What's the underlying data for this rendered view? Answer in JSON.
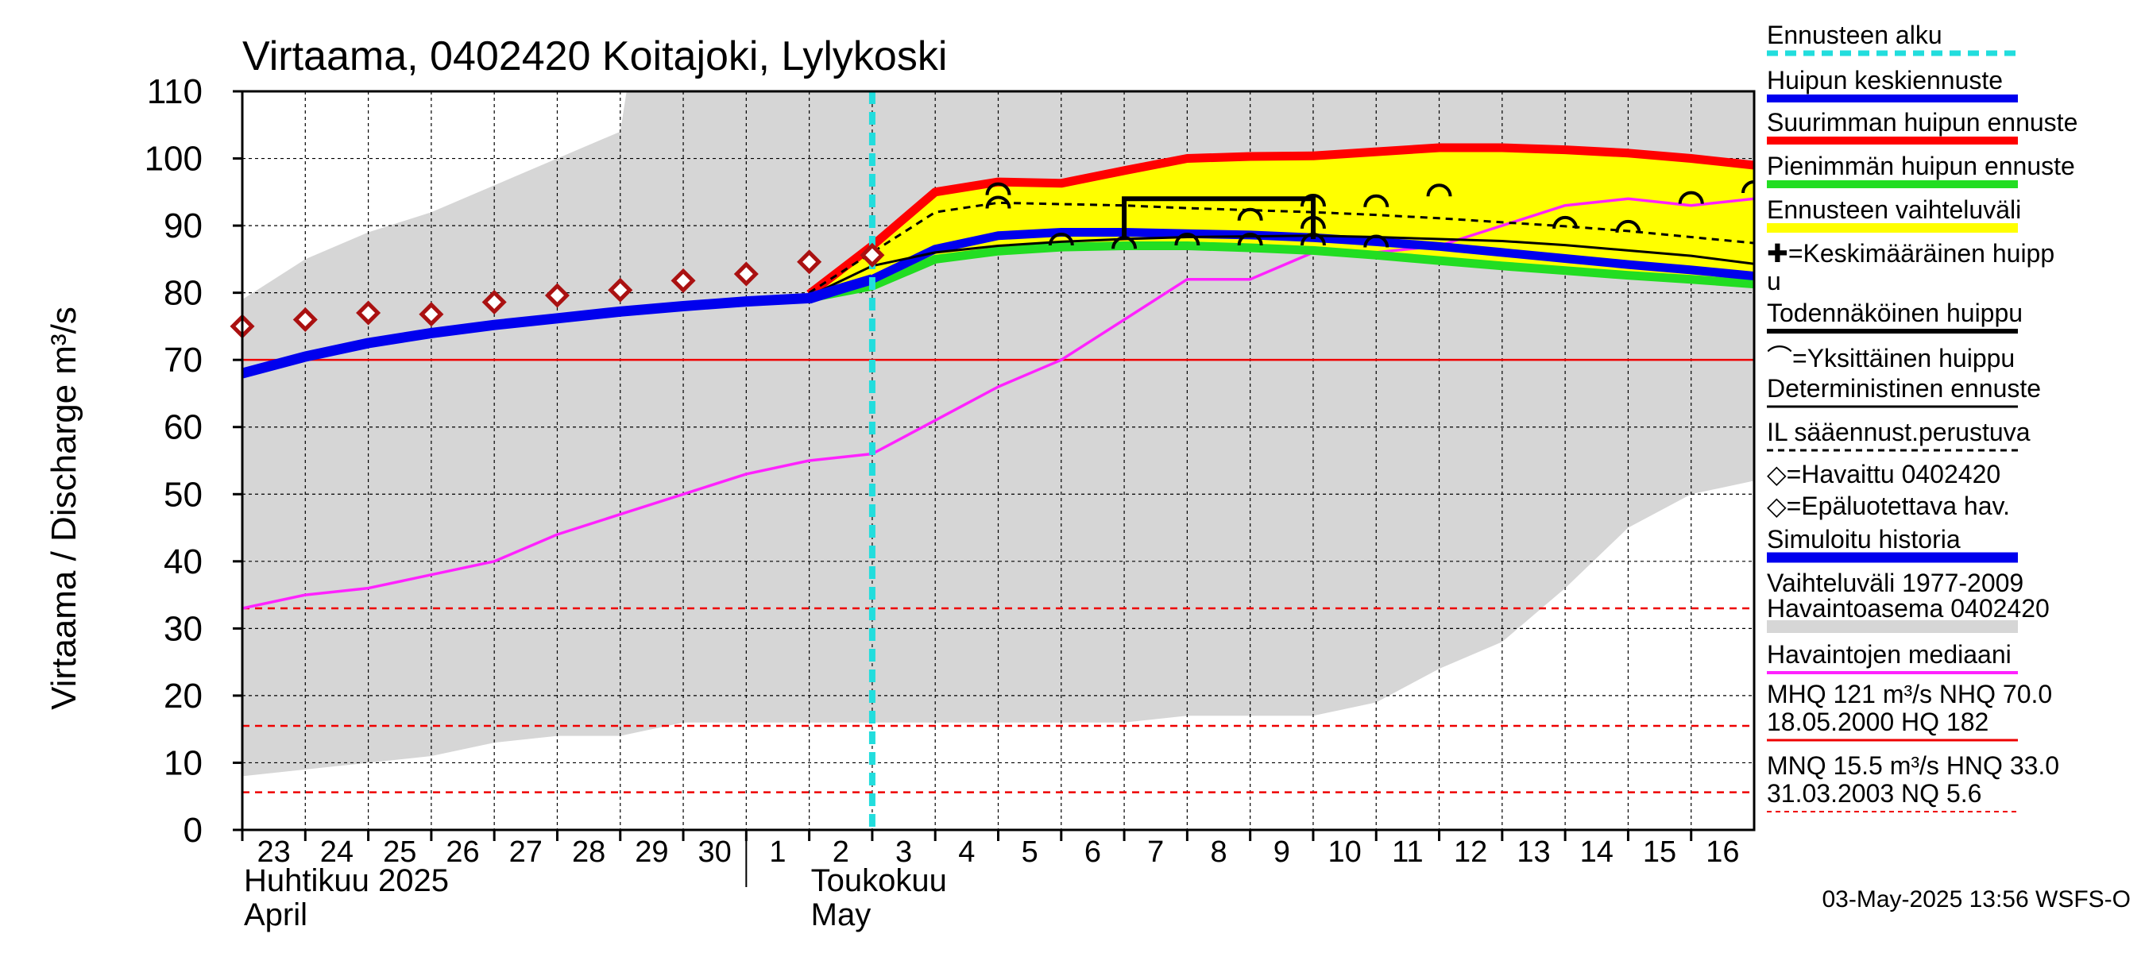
{
  "title": "Virtaama, 0402420 Koitajoki, Lylykoski",
  "footer": "03-May-2025 13:56 WSFS-O",
  "colors": {
    "forecast_start": "#22dddd",
    "mean_peak": "#0000ee",
    "max_peak": "#ff0000",
    "min_peak": "#22dd22",
    "range": "#ffff00",
    "history_range": "#d6d6d6",
    "median": "#ff22ff",
    "observed_unreliable": "#aa1111",
    "reference_line": "#ee0000"
  },
  "chart_data": {
    "type": "line",
    "title": "Virtaama, 0402420 Koitajoki, Lylykoski",
    "ylabel": "Virtaama / Discharge    m³/s",
    "ylim": [
      0,
      110
    ],
    "yticks": [
      0,
      10,
      20,
      30,
      40,
      50,
      60,
      70,
      80,
      90,
      100,
      110
    ],
    "xlim": [
      0,
      24
    ],
    "day_labels": [
      "23",
      "24",
      "25",
      "26",
      "27",
      "28",
      "29",
      "30",
      "1",
      "2",
      "3",
      "4",
      "5",
      "6",
      "7",
      "8",
      "9",
      "10",
      "11",
      "12",
      "13",
      "14",
      "15",
      "16"
    ],
    "months": [
      {
        "label1": "Huhtikuu  2025",
        "label2": "April",
        "x": 0
      },
      {
        "label1": "Toukokuu",
        "label2": "May",
        "x": 9
      }
    ],
    "month_divider_x": 8,
    "grid": true,
    "forecast_start_x": 10,
    "history_range_upper": [
      [
        0,
        79
      ],
      [
        1,
        85
      ],
      [
        2,
        89
      ],
      [
        3,
        92
      ],
      [
        4,
        96
      ],
      [
        5,
        100
      ],
      [
        6,
        104
      ],
      [
        6.1,
        110
      ],
      [
        24,
        110
      ]
    ],
    "history_range_lower": [
      [
        0,
        8
      ],
      [
        1,
        9
      ],
      [
        2,
        10
      ],
      [
        3,
        11
      ],
      [
        4,
        13
      ],
      [
        5,
        14
      ],
      [
        6,
        14
      ],
      [
        7,
        16
      ],
      [
        8,
        16
      ],
      [
        9,
        16
      ],
      [
        10,
        16
      ],
      [
        11,
        16
      ],
      [
        12,
        16
      ],
      [
        13,
        16
      ],
      [
        14,
        16
      ],
      [
        15,
        17
      ],
      [
        16,
        17
      ],
      [
        17,
        17
      ],
      [
        18,
        19
      ],
      [
        19,
        24
      ],
      [
        20,
        28
      ],
      [
        21,
        36
      ],
      [
        22,
        45
      ],
      [
        23,
        50
      ],
      [
        24,
        52
      ],
      [
        24,
        52
      ]
    ],
    "series": [
      {
        "name": "Havaintojen mediaani",
        "role": "median",
        "values": [
          [
            0,
            33
          ],
          [
            1,
            35
          ],
          [
            2,
            36
          ],
          [
            3,
            38
          ],
          [
            4,
            40
          ],
          [
            5,
            44
          ],
          [
            6,
            47
          ],
          [
            7,
            50
          ],
          [
            8,
            53
          ],
          [
            9,
            55
          ],
          [
            10,
            56
          ],
          [
            11,
            61
          ],
          [
            12,
            66
          ],
          [
            13,
            70
          ],
          [
            14,
            76
          ],
          [
            15,
            82
          ],
          [
            16,
            82
          ],
          [
            17,
            86
          ],
          [
            18,
            86
          ],
          [
            19,
            87
          ],
          [
            20,
            90
          ],
          [
            21,
            93
          ],
          [
            22,
            94
          ],
          [
            23,
            93
          ],
          [
            24,
            94
          ]
        ]
      },
      {
        "name": "Simuloitu historia",
        "role": "simulated",
        "values": [
          [
            0,
            68
          ],
          [
            1,
            70.5
          ],
          [
            2,
            72.5
          ],
          [
            3,
            74
          ],
          [
            4,
            75.2
          ],
          [
            5,
            76.2
          ],
          [
            6,
            77.2
          ],
          [
            7,
            78
          ],
          [
            8,
            78.7
          ],
          [
            9,
            79.2
          ],
          [
            10,
            82
          ]
        ]
      },
      {
        "name": "Suurimman huipun ennuste",
        "role": "max",
        "values": [
          [
            9,
            79.8
          ],
          [
            10,
            87
          ],
          [
            11,
            95
          ],
          [
            12,
            96.5
          ],
          [
            13,
            96.3
          ],
          [
            14,
            98.2
          ],
          [
            15,
            100
          ],
          [
            16,
            100.3
          ],
          [
            17,
            100.4
          ],
          [
            18,
            101
          ],
          [
            19,
            101.6
          ],
          [
            20,
            101.6
          ],
          [
            21,
            101.3
          ],
          [
            22,
            100.8
          ],
          [
            23,
            100
          ],
          [
            24,
            99
          ]
        ]
      },
      {
        "name": "Pienimmän huipun ennuste",
        "role": "min",
        "values": [
          [
            9,
            79.2
          ],
          [
            10,
            81
          ],
          [
            11,
            85
          ],
          [
            12,
            86.2
          ],
          [
            13,
            86.8
          ],
          [
            14,
            87
          ],
          [
            15,
            87
          ],
          [
            16,
            86.7
          ],
          [
            17,
            86.3
          ],
          [
            18,
            85.6
          ],
          [
            19,
            84.8
          ],
          [
            20,
            84
          ],
          [
            21,
            83.3
          ],
          [
            22,
            82.6
          ],
          [
            23,
            82
          ],
          [
            24,
            81.3
          ]
        ]
      },
      {
        "name": "Huipun keskiennuste",
        "role": "mean",
        "values": [
          [
            9,
            79
          ],
          [
            10,
            82
          ],
          [
            11,
            86.5
          ],
          [
            12,
            88.5
          ],
          [
            13,
            89
          ],
          [
            14,
            89
          ],
          [
            15,
            88.8
          ],
          [
            16,
            88.6
          ],
          [
            17,
            88.2
          ],
          [
            18,
            87.6
          ],
          [
            19,
            86.9
          ],
          [
            20,
            86
          ],
          [
            21,
            85.1
          ],
          [
            22,
            84.2
          ],
          [
            23,
            83.4
          ],
          [
            24,
            82.5
          ]
        ]
      },
      {
        "name": "Deterministinen ennuste",
        "role": "deterministic",
        "values": [
          [
            9,
            79.5
          ],
          [
            10,
            84
          ],
          [
            11,
            86
          ],
          [
            12,
            87
          ],
          [
            13,
            87.6
          ],
          [
            14,
            88
          ],
          [
            15,
            88.3
          ],
          [
            16,
            88.4
          ],
          [
            17,
            88.5
          ],
          [
            18,
            88.3
          ],
          [
            19,
            88
          ],
          [
            20,
            87.7
          ],
          [
            21,
            87.1
          ],
          [
            22,
            86.3
          ],
          [
            23,
            85.5
          ],
          [
            24,
            84.3
          ]
        ]
      },
      {
        "name": "IL sääennust.perustuva",
        "role": "il",
        "values": [
          [
            9,
            80
          ],
          [
            10,
            86
          ],
          [
            11,
            92
          ],
          [
            12,
            93.4
          ],
          [
            13,
            93.2
          ],
          [
            14,
            93
          ],
          [
            15,
            92.6
          ],
          [
            16,
            92.3
          ],
          [
            17,
            92
          ],
          [
            18,
            91.6
          ],
          [
            19,
            91.1
          ],
          [
            20,
            90.5
          ],
          [
            21,
            89.9
          ],
          [
            22,
            89.2
          ],
          [
            23,
            88.3
          ],
          [
            24,
            87.4
          ]
        ]
      }
    ],
    "observed_unreliable": [
      [
        0,
        75
      ],
      [
        1,
        76
      ],
      [
        2,
        77
      ],
      [
        3,
        76.8
      ],
      [
        4,
        78.6
      ],
      [
        5,
        79.6
      ],
      [
        6,
        80.4
      ],
      [
        7,
        81.8
      ],
      [
        8,
        82.8
      ],
      [
        9,
        84.6
      ],
      [
        10,
        85.6
      ]
    ],
    "probable_peak": {
      "x0": 14,
      "x1": 17,
      "y_top": 94,
      "y_bottom": 88
    },
    "individual_peaks": [
      [
        12,
        95.5
      ],
      [
        12,
        93.5
      ],
      [
        13,
        88
      ],
      [
        14,
        87.5
      ],
      [
        15,
        88
      ],
      [
        16,
        88
      ],
      [
        16,
        91.7
      ],
      [
        17,
        93.8
      ],
      [
        17,
        90.5
      ],
      [
        17,
        88
      ],
      [
        18,
        93.7
      ],
      [
        18,
        87.7
      ],
      [
        19,
        95.3
      ],
      [
        21,
        90.5
      ],
      [
        22,
        89.9
      ],
      [
        23,
        94.2
      ],
      [
        24,
        95.8
      ]
    ],
    "reference_lines": [
      {
        "label": "NHQ",
        "value": 70.0,
        "style": "solid"
      },
      {
        "label": "HNQ",
        "value": 33.0,
        "style": "dashed"
      },
      {
        "label": "MNQ",
        "value": 15.5,
        "style": "dashed"
      },
      {
        "label": "NQ",
        "value": 5.6,
        "style": "dashed"
      }
    ]
  },
  "legend": {
    "items": [
      "Ennusteen alku",
      "Huipun keskiennuste",
      "Suurimman huipun ennuste",
      "Pienimmän huipun ennuste",
      "Ennusteen vaihteluväli",
      "✚=Keskimääräinen huipp",
      "u",
      "Todennäköinen huippu",
      "⌒=Yksittäinen huippu",
      "Deterministinen ennuste",
      "IL sääennust.perustuva",
      "◇=Havaittu 0402420",
      "◇=Epäluotettava hav.",
      "Simuloitu historia",
      "Vaihteluväli 1977-2009",
      " Havaintoasema 0402420",
      "Havaintojen mediaani",
      "MHQ  121 m³/s NHQ 70.0",
      "18.05.2000 HQ  182",
      "MNQ 15.5 m³/s HNQ 33.0",
      "31.03.2003 NQ  5.6"
    ]
  }
}
